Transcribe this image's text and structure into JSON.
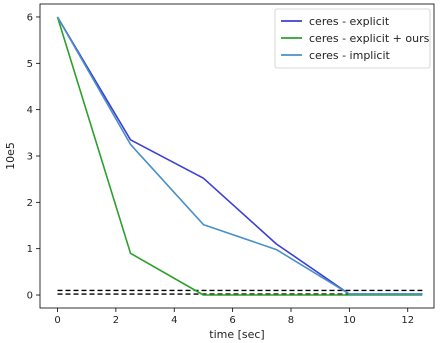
{
  "chart_data": {
    "type": "line",
    "xlabel": "time [sec]",
    "ylabel": "10e5",
    "xlim": [
      -0.6,
      12.9
    ],
    "ylim": [
      -0.28,
      6.28
    ],
    "xticks": [
      0,
      2,
      4,
      6,
      8,
      10,
      12
    ],
    "yticks": [
      0,
      1,
      2,
      3,
      4,
      5,
      6
    ],
    "grid": false,
    "legend": {
      "placement": "top-right"
    },
    "series": [
      {
        "name": "ceres - explicit",
        "color": "#3b3fd6",
        "x": [
          0,
          2.5,
          5.0,
          7.5,
          10.0,
          12.5
        ],
        "y": [
          6.0,
          3.35,
          2.52,
          1.1,
          0.02,
          0.02
        ]
      },
      {
        "name": "ceres - explicit + ours",
        "color": "#2ca02c",
        "x": [
          0,
          2.5,
          5.0,
          7.5,
          10.0,
          12.5
        ],
        "y": [
          6.0,
          0.9,
          0.0,
          0.0,
          0.0,
          0.0
        ]
      },
      {
        "name": "ceres - implicit",
        "color": "#4a90c8",
        "x": [
          0,
          2.5,
          5.0,
          7.5,
          10.0,
          12.5
        ],
        "y": [
          6.0,
          3.25,
          1.52,
          0.98,
          0.02,
          0.02
        ]
      }
    ],
    "reference_lines": [
      {
        "style": "dashed",
        "color": "#000000",
        "y": 0.1,
        "x": [
          0,
          12.5
        ]
      },
      {
        "style": "dashed",
        "color": "#000000",
        "y": 0.02,
        "x": [
          0,
          12.5
        ]
      }
    ]
  }
}
